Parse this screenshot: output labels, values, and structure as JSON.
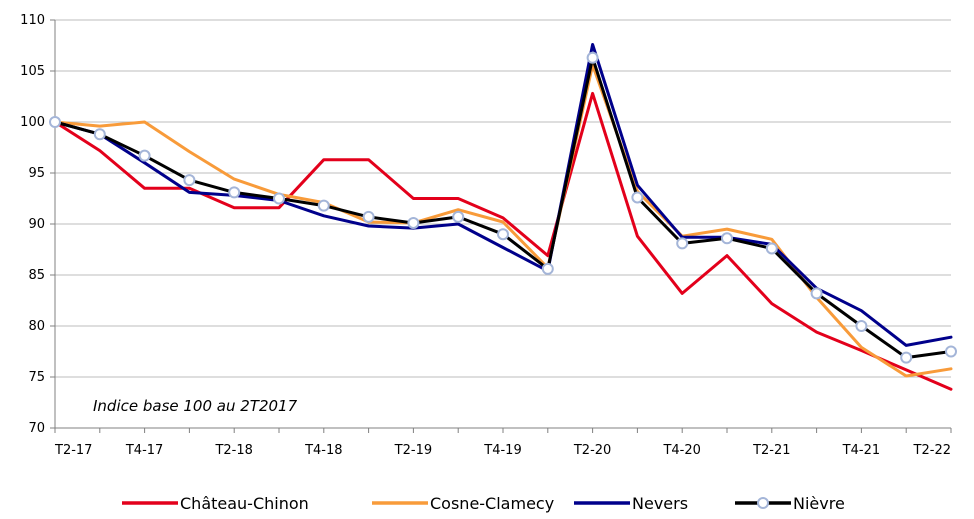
{
  "chart_data": {
    "type": "line",
    "title": "",
    "xlabel": "",
    "ylabel": "",
    "annotation": "Indice base 100 au 2T2017",
    "ylim": [
      70,
      110
    ],
    "yticks": [
      70,
      75,
      80,
      85,
      90,
      95,
      100,
      105,
      110
    ],
    "grid": "horizontal",
    "legend_position": "bottom",
    "x": [
      "T2-17",
      "T3-17",
      "T4-17",
      "T1-18",
      "T2-18",
      "T3-18",
      "T4-18",
      "T1-19",
      "T2-19",
      "T3-19",
      "T4-19",
      "T1-20",
      "T2-20",
      "T3-20",
      "T4-20",
      "T1-21",
      "T2-21",
      "T3-21",
      "T4-21",
      "T1-22",
      "T2-22"
    ],
    "x_tick_labels": [
      "T2-17",
      "",
      "T4-17",
      "",
      "T2-18",
      "",
      "T4-18",
      "",
      "T2-19",
      "",
      "T4-19",
      "",
      "T2-20",
      "",
      "T4-20",
      "",
      "T2-21",
      "",
      "T4-21",
      "",
      "T2-22"
    ],
    "series": [
      {
        "name": "Château-Chinon",
        "color": "#e3001b",
        "marker": "none",
        "values": [
          100,
          97.2,
          93.5,
          93.5,
          91.6,
          91.6,
          96.3,
          96.3,
          92.5,
          92.5,
          90.6,
          86.9,
          102.8,
          88.8,
          83.2,
          86.9,
          82.2,
          79.4,
          77.6,
          75.7,
          73.8
        ]
      },
      {
        "name": "Cosne-Clamecy",
        "color": "#f89b3a",
        "marker": "none",
        "values": [
          100,
          99.6,
          100.0,
          97.1,
          94.4,
          92.9,
          92.1,
          90.2,
          90.1,
          91.4,
          90.2,
          85.7,
          105.6,
          93.2,
          88.8,
          89.5,
          88.5,
          82.8,
          77.9,
          75.1,
          75.8
        ]
      },
      {
        "name": "Nevers",
        "color": "#00008b",
        "marker": "none",
        "values": [
          100,
          98.8,
          96.0,
          93.1,
          92.8,
          92.3,
          90.8,
          89.8,
          89.6,
          90.0,
          87.7,
          85.4,
          107.6,
          93.8,
          88.7,
          88.7,
          88.0,
          83.7,
          81.5,
          78.1,
          78.9
        ]
      },
      {
        "name": "Nièvre",
        "color": "#000000",
        "marker": "circle",
        "values": [
          100,
          98.8,
          96.7,
          94.3,
          93.1,
          92.5,
          91.8,
          90.7,
          90.1,
          90.7,
          89.0,
          85.6,
          106.3,
          92.6,
          88.1,
          88.6,
          87.6,
          83.2,
          80.0,
          76.9,
          77.5
        ]
      }
    ]
  }
}
